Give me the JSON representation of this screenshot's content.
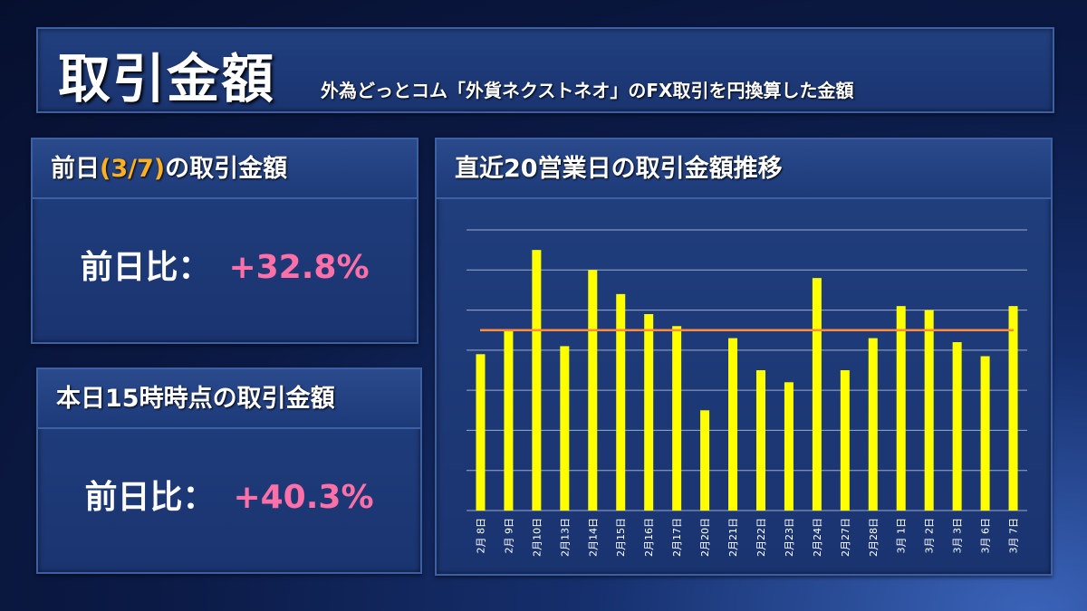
{
  "header": {
    "title": "取引金額",
    "subtitle": "外為どっとコム「外貨ネクストネオ」のFX取引を円換算した金額"
  },
  "prev_day": {
    "title_prefix": "前日",
    "title_date": "(3/7)",
    "title_suffix": "の取引金額",
    "label": "前日比：",
    "value": "+32.8%"
  },
  "today": {
    "title": "本日15時時点の取引金額",
    "label": "前日比：",
    "value": "+40.3%"
  },
  "colors": {
    "bar": "#ffff00",
    "average_line": "#ff8c3a",
    "value_text": "#ff6fa8",
    "accent": "#ffb020"
  },
  "chart_data": {
    "type": "bar",
    "title": "直近20営業日の取引金額推移",
    "categories": [
      "2月 8日",
      "2月 9日",
      "2月10日",
      "2月13日",
      "2月14日",
      "2月15日",
      "2月16日",
      "2月17日",
      "2月20日",
      "2月21日",
      "2月22日",
      "2月23日",
      "2月24日",
      "2月27日",
      "2月28日",
      "3月 1日",
      "3月 2日",
      "3月 3日",
      "3月 6日",
      "3月 7日"
    ],
    "series": [
      {
        "values": [
          3.9,
          4.5,
          6.5,
          4.1,
          6.0,
          5.4,
          4.9,
          4.6,
          2.5,
          4.3,
          3.5,
          3.2,
          5.8,
          3.5,
          4.3,
          5.1,
          5.0,
          4.2,
          3.85,
          5.1
        ]
      }
    ],
    "average_line": 4.5,
    "ylim": [
      0,
      7
    ],
    "grid": true,
    "legend": "none",
    "xlabel": "",
    "ylabel": ""
  }
}
